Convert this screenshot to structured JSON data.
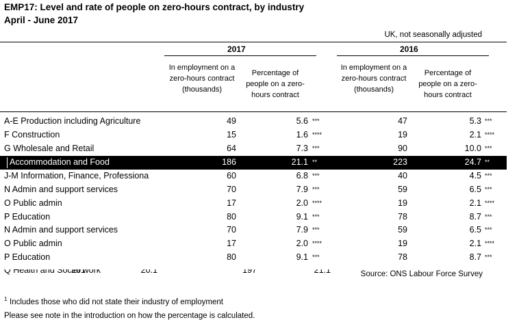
{
  "title": "EMP17: Level and rate of people on zero-hours contract, by industry",
  "subtitle": "April - June 2017",
  "note_top": "UK, not seasonally adjusted",
  "years": [
    "2017",
    "2016"
  ],
  "col_headers": {
    "employment": "In employment on a zero-hours contract (thousands)",
    "percentage": "Percentage of people on a zero-hours contract"
  },
  "rows": [
    {
      "industry": "A-E Production including Agriculture",
      "n2017": "49",
      "p2017": "5.6",
      "q2017": "***",
      "n2016": "47",
      "p2016": "5.3",
      "q2016": "***"
    },
    {
      "industry": "F Construction",
      "n2017": "15",
      "p2017": "1.6",
      "q2017": "****",
      "n2016": "19",
      "p2016": "2.1",
      "q2016": "****"
    },
    {
      "industry": "G Wholesale and Retail",
      "n2017": "64",
      "p2017": "7.3",
      "q2017": "***",
      "n2016": "90",
      "p2016": "10.0",
      "q2016": "***"
    },
    {
      "industry": "Accommodation and Food",
      "n2017": "186",
      "p2017": "21.1",
      "q2017": "**",
      "n2016": "223",
      "p2016": "24.7",
      "q2016": "**"
    },
    {
      "industry": "J-M Information, Finance, Professiona",
      "n2017": "60",
      "p2017": "6.8",
      "q2017": "***",
      "n2016": "40",
      "p2016": "4.5",
      "q2016": "***"
    },
    {
      "industry": "N Admin and support services",
      "n2017": "70",
      "p2017": "7.9",
      "q2017": "***",
      "n2016": "59",
      "p2016": "6.5",
      "q2016": "***"
    },
    {
      "industry": "O Public admin",
      "n2017": "17",
      "p2017": "2.0",
      "q2017": "****",
      "n2016": "19",
      "p2016": "2.1",
      "q2016": "****"
    },
    {
      "industry": "P Education",
      "n2017": "80",
      "p2017": "9.1",
      "q2017": "***",
      "n2016": "78",
      "p2016": "8.7",
      "q2016": "***"
    },
    {
      "industry": "N Admin and support services",
      "n2017": "70",
      "p2017": "7.9",
      "q2017": "***",
      "n2016": "59",
      "p2016": "6.5",
      "q2016": "***"
    },
    {
      "industry": "O Public admin",
      "n2017": "17",
      "p2017": "2.0",
      "q2017": "****",
      "n2016": "19",
      "p2016": "2.1",
      "q2016": "****"
    },
    {
      "industry": "P Education",
      "n2017": "80",
      "p2017": "9.1",
      "q2017": "***",
      "n2016": "78",
      "p2016": "8.7",
      "q2016": "***"
    }
  ],
  "partial_row": {
    "industry": "Q Health and Social work",
    "n2017": "201",
    "p2017": "20.1",
    "n2016": "197",
    "p2016": "21.1"
  },
  "source": "Source: ONS Labour Force Survey",
  "footnote_marker": "1",
  "footnote_1": "Includes those who did not state their industry of employment",
  "footnote_2": "Please see note in the introduction on how the percentage is calculated."
}
